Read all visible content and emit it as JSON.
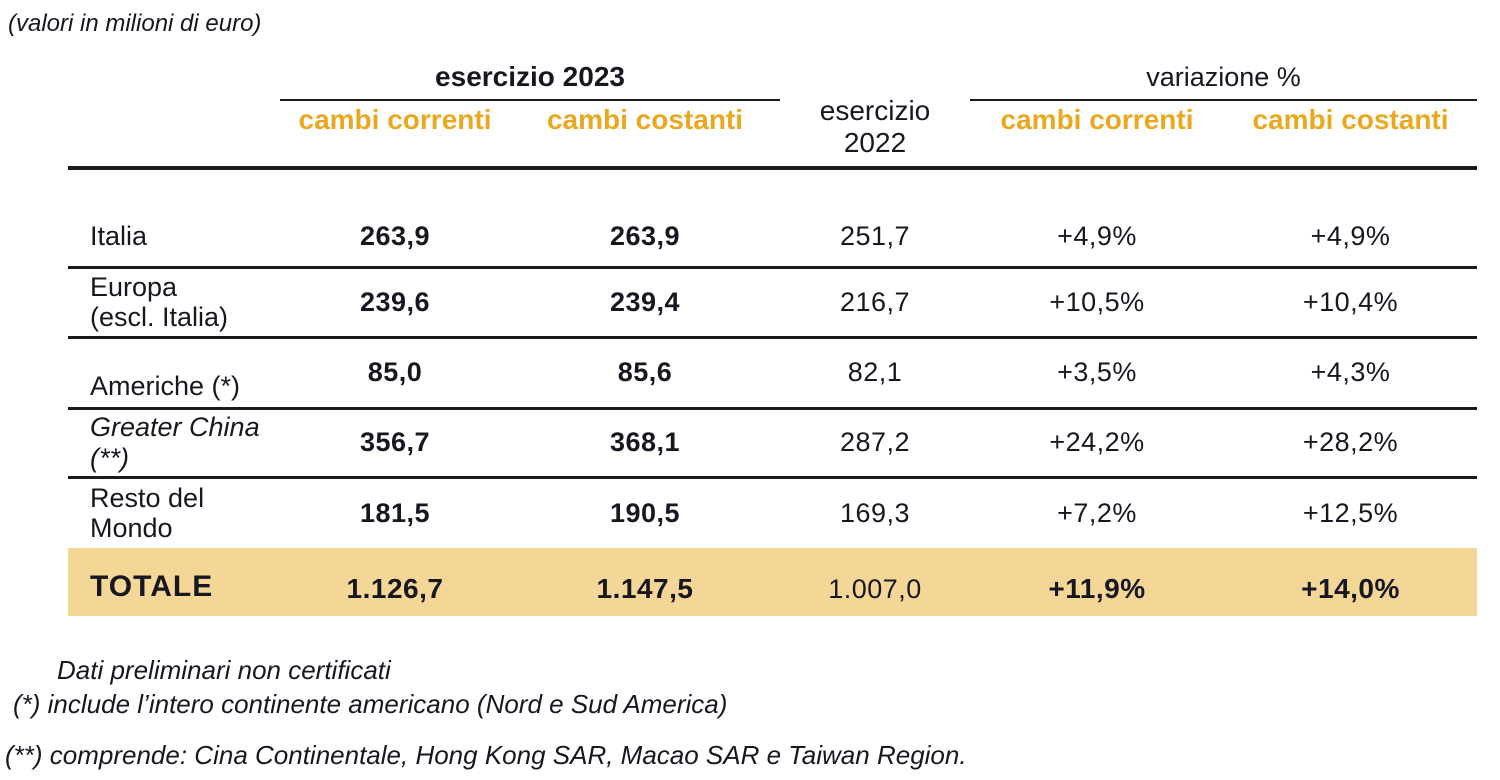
{
  "unit_note": "(valori in milioni di euro)",
  "colors": {
    "accent_gold": "#E9A820",
    "total_row_bg": "#F4D696"
  },
  "table": {
    "header": {
      "fy2023_group": "esercizio 2023",
      "fy2022": "esercizio\n2022",
      "variation_group": "variazione %",
      "sub_current_2023": "cambi correnti",
      "sub_constant_2023": "cambi costanti",
      "sub_current_var": "cambi correnti",
      "sub_constant_var": "cambi costanti"
    },
    "rows": [
      {
        "label": "Italia",
        "italic": false,
        "fy2023_current": "263,9",
        "fy2023_constant": "263,9",
        "fy2022": "251,7",
        "var_current": "+4,9%",
        "var_constant": "+4,9%"
      },
      {
        "label": "Europa\n(escl. Italia)",
        "italic": false,
        "fy2023_current": "239,6",
        "fy2023_constant": "239,4",
        "fy2022": "216,7",
        "var_current": "+10,5%",
        "var_constant": "+10,4%"
      },
      {
        "label": "Americhe (*)",
        "italic": false,
        "fy2023_current": "85,0",
        "fy2023_constant": "85,6",
        "fy2022": "82,1",
        "var_current": "+3,5%",
        "var_constant": "+4,3%"
      },
      {
        "label": "Greater China\n(**)",
        "italic": true,
        "fy2023_current": "356,7",
        "fy2023_constant": "368,1",
        "fy2022": "287,2",
        "var_current": "+24,2%",
        "var_constant": "+28,2%"
      },
      {
        "label": "Resto del\nMondo",
        "italic": false,
        "fy2023_current": "181,5",
        "fy2023_constant": "190,5",
        "fy2022": "169,3",
        "var_current": "+7,2%",
        "var_constant": "+12,5%"
      }
    ],
    "total_row": {
      "label": "TOTALE",
      "fy2023_current": "1.126,7",
      "fy2023_constant": "1.147,5",
      "fy2022": "1.007,0",
      "var_current": "+11,9%",
      "var_constant": "+14,0%"
    }
  },
  "footnotes": [
    "Dati preliminari non certificati",
    "(*) include l’intero continente americano (Nord e Sud America)",
    "(**) comprende: Cina Continentale, Hong Kong SAR, Macao SAR e Taiwan Region."
  ]
}
